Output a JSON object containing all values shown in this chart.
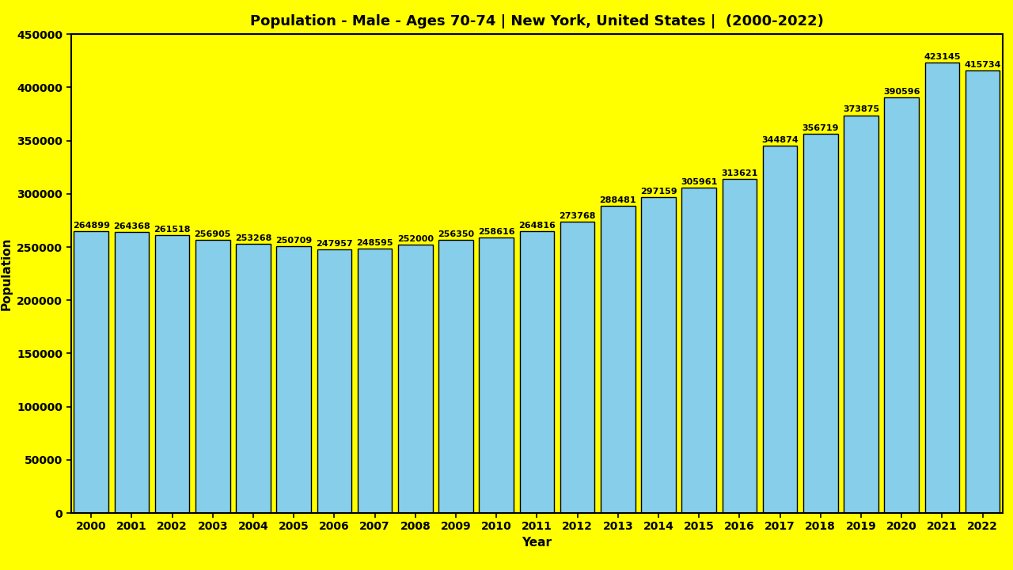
{
  "title": "Population - Male - Ages 70-74 | New York, United States |  (2000-2022)",
  "xlabel": "Year",
  "ylabel": "Population",
  "background_color": "#FFFF00",
  "bar_color": "#87CEEB",
  "bar_edge_color": "#000000",
  "years": [
    2000,
    2001,
    2002,
    2003,
    2004,
    2005,
    2006,
    2007,
    2008,
    2009,
    2010,
    2011,
    2012,
    2013,
    2014,
    2015,
    2016,
    2017,
    2018,
    2019,
    2020,
    2021,
    2022
  ],
  "values": [
    264899,
    264368,
    261518,
    256905,
    253268,
    250709,
    247957,
    248595,
    252000,
    256350,
    258616,
    264816,
    273768,
    288481,
    297159,
    305961,
    313621,
    344874,
    356719,
    373875,
    390596,
    423145,
    415734
  ],
  "ylim": [
    0,
    450000
  ],
  "yticks": [
    0,
    50000,
    100000,
    150000,
    200000,
    250000,
    300000,
    350000,
    400000,
    450000
  ],
  "title_fontsize": 13,
  "axis_label_fontsize": 11,
  "tick_fontsize": 10,
  "annotation_fontsize": 8,
  "bar_width": 0.85
}
